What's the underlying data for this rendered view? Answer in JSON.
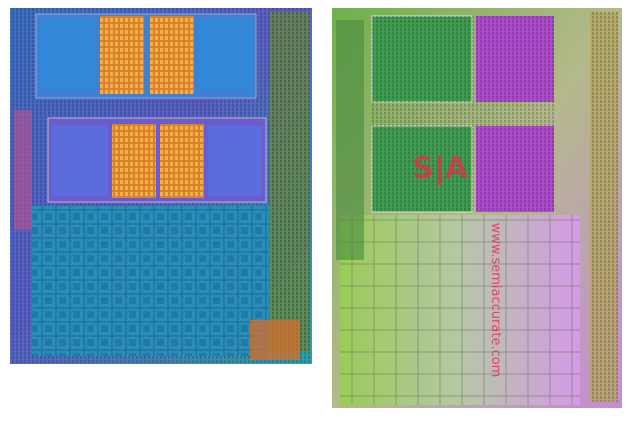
{
  "logo": "S|A",
  "watermark": "www.semiaccurate.com"
}
